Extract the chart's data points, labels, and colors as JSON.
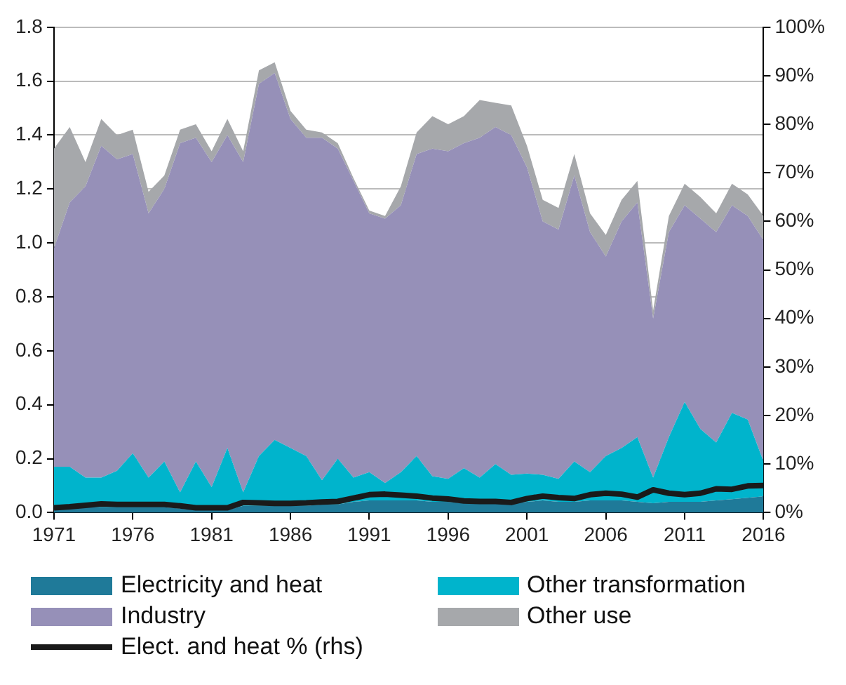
{
  "chart_data": {
    "type": "area",
    "stacked": true,
    "x": [
      1971,
      1972,
      1973,
      1974,
      1975,
      1976,
      1977,
      1978,
      1979,
      1980,
      1981,
      1982,
      1983,
      1984,
      1985,
      1986,
      1987,
      1988,
      1989,
      1990,
      1991,
      1992,
      1993,
      1994,
      1995,
      1996,
      1997,
      1998,
      1999,
      2000,
      2001,
      2002,
      2003,
      2004,
      2005,
      2006,
      2007,
      2008,
      2009,
      2010,
      2011,
      2012,
      2013,
      2014,
      2015,
      2016
    ],
    "series": [
      {
        "name": "Electricity and heat",
        "type": "area",
        "color": "#1f7a99",
        "values": [
          0.01,
          0.015,
          0.02,
          0.02,
          0.02,
          0.02,
          0.02,
          0.02,
          0.015,
          0.01,
          0.01,
          0.01,
          0.025,
          0.025,
          0.025,
          0.025,
          0.025,
          0.03,
          0.03,
          0.04,
          0.045,
          0.045,
          0.045,
          0.045,
          0.04,
          0.04,
          0.035,
          0.035,
          0.035,
          0.035,
          0.04,
          0.045,
          0.04,
          0.04,
          0.045,
          0.045,
          0.045,
          0.04,
          0.035,
          0.04,
          0.04,
          0.04,
          0.045,
          0.05,
          0.055,
          0.06
        ]
      },
      {
        "name": "Other transformation",
        "type": "area",
        "color": "#00b4cc",
        "values": [
          0.16,
          0.155,
          0.11,
          0.11,
          0.135,
          0.2,
          0.11,
          0.17,
          0.06,
          0.18,
          0.085,
          0.23,
          0.05,
          0.185,
          0.245,
          0.215,
          0.185,
          0.09,
          0.17,
          0.09,
          0.105,
          0.065,
          0.105,
          0.165,
          0.095,
          0.085,
          0.13,
          0.095,
          0.145,
          0.105,
          0.105,
          0.095,
          0.085,
          0.15,
          0.105,
          0.165,
          0.195,
          0.24,
          0.095,
          0.24,
          0.37,
          0.27,
          0.215,
          0.32,
          0.29,
          0.13
        ]
      },
      {
        "name": "Industry",
        "type": "area",
        "color": "#9690b8",
        "values": [
          0.81,
          0.98,
          1.08,
          1.23,
          1.155,
          1.11,
          0.98,
          1.01,
          1.295,
          1.2,
          1.205,
          1.16,
          1.225,
          1.38,
          1.36,
          1.22,
          1.18,
          1.27,
          1.15,
          1.1,
          0.96,
          0.98,
          0.99,
          1.12,
          1.215,
          1.215,
          1.205,
          1.26,
          1.25,
          1.26,
          1.135,
          0.94,
          0.925,
          1.06,
          0.89,
          0.74,
          0.84,
          0.87,
          0.59,
          0.76,
          0.73,
          0.78,
          0.78,
          0.77,
          0.755,
          0.82
        ]
      },
      {
        "name": "Other use",
        "type": "area",
        "color": "#a6a8ab",
        "values": [
          0.37,
          0.28,
          0.09,
          0.1,
          0.09,
          0.09,
          0.08,
          0.05,
          0.05,
          0.05,
          0.04,
          0.06,
          0.04,
          0.05,
          0.04,
          0.03,
          0.03,
          0.02,
          0.02,
          0.01,
          0.01,
          0.01,
          0.07,
          0.08,
          0.12,
          0.1,
          0.1,
          0.14,
          0.09,
          0.11,
          0.08,
          0.08,
          0.08,
          0.08,
          0.07,
          0.08,
          0.08,
          0.08,
          0.03,
          0.06,
          0.08,
          0.08,
          0.07,
          0.08,
          0.08,
          0.09
        ]
      },
      {
        "name": "Elect. and heat % (rhs)",
        "type": "line",
        "axis": "y2",
        "color": "#1a1a1a",
        "values": [
          1.0,
          1.2,
          1.5,
          1.8,
          1.7,
          1.7,
          1.7,
          1.7,
          1.4,
          1.0,
          1.0,
          1.0,
          2.1,
          2.0,
          1.9,
          1.9,
          2.0,
          2.2,
          2.3,
          3.0,
          3.7,
          3.8,
          3.6,
          3.4,
          3.0,
          2.8,
          2.4,
          2.3,
          2.3,
          2.1,
          2.9,
          3.4,
          3.1,
          2.9,
          3.7,
          4.0,
          3.8,
          3.2,
          4.7,
          4.0,
          3.7,
          4.0,
          4.9,
          4.8,
          5.5,
          5.6
        ]
      }
    ],
    "xlim": [
      1971,
      2016
    ],
    "xticks": [
      1971,
      1976,
      1981,
      1986,
      1991,
      1996,
      2001,
      2006,
      2011,
      2016
    ],
    "ylim": [
      0,
      1.8
    ],
    "yticks": [
      {
        "value": 0,
        "label": "0.0"
      },
      0.2,
      0.4,
      0.6,
      0.8,
      {
        "value": 1,
        "label": "1.0"
      },
      1.2,
      1.4,
      1.6,
      1.8
    ],
    "y2lim": [
      0,
      100
    ],
    "y2ticks": [
      {
        "value": 0,
        "label": "0%"
      },
      {
        "value": 10,
        "label": "10%"
      },
      {
        "value": 20,
        "label": "20%"
      },
      {
        "value": 30,
        "label": "30%"
      },
      {
        "value": 40,
        "label": "40%"
      },
      {
        "value": 50,
        "label": "50%"
      },
      {
        "value": 60,
        "label": "60%"
      },
      {
        "value": 70,
        "label": "70%"
      },
      {
        "value": 80,
        "label": "80%"
      },
      {
        "value": 90,
        "label": "90%"
      },
      {
        "value": 100,
        "label": "100%"
      }
    ],
    "grid": "y",
    "legend": "bottom",
    "marker": "none"
  }
}
